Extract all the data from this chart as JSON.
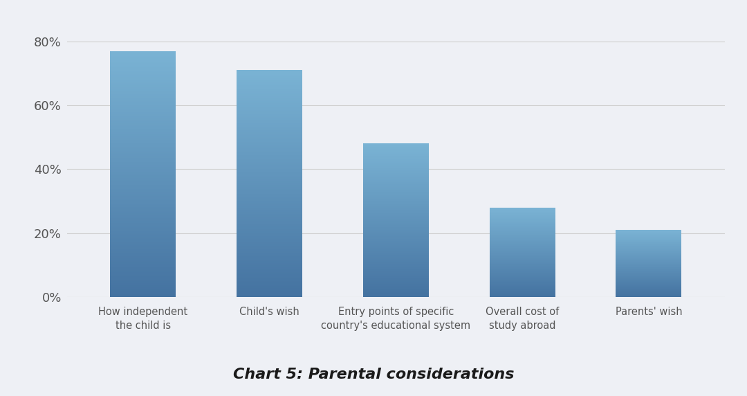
{
  "categories": [
    "How independent\nthe child is",
    "Child's wish",
    "Entry points of specific\ncountry's educational system",
    "Overall cost of\nstudy abroad",
    "Parents' wish"
  ],
  "values": [
    0.77,
    0.71,
    0.48,
    0.28,
    0.21
  ],
  "bar_color_top": "#7ab3d4",
  "bar_color_bottom": "#4472a0",
  "title": "Chart 5: Parental considerations",
  "title_fontsize": 16,
  "title_fontstyle": "italic",
  "title_fontweight": "bold",
  "ylim": [
    0,
    0.88
  ],
  "yticks": [
    0.0,
    0.2,
    0.4,
    0.6,
    0.8
  ],
  "ytick_labels": [
    "0%",
    "20%",
    "40%",
    "60%",
    "80%"
  ],
  "background_color": "#eef0f5",
  "plot_bg_color": "#eef0f5",
  "grid_color": "#d0d0d0",
  "tick_color": "#555555",
  "bar_width": 0.52
}
